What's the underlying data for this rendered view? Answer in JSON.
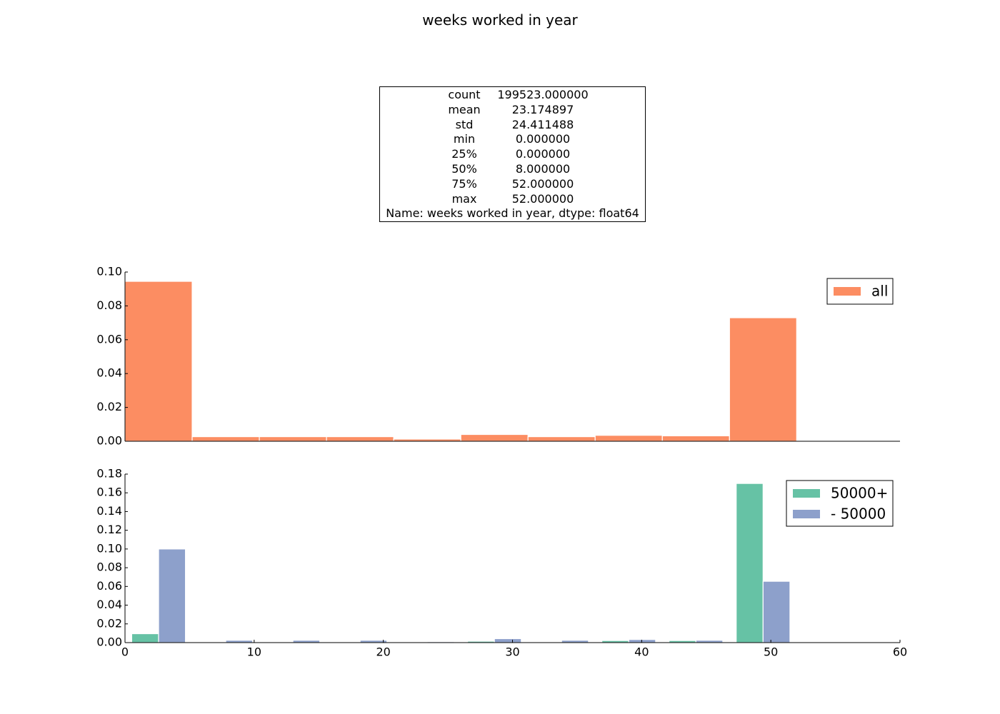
{
  "page_title": "weeks worked in year",
  "stats": {
    "rows": [
      {
        "key": "count",
        "value": "199523.000000"
      },
      {
        "key": "mean",
        "value": "23.174897"
      },
      {
        "key": "std",
        "value": "24.411488"
      },
      {
        "key": "min",
        "value": "0.000000"
      },
      {
        "key": "25%",
        "value": "0.000000"
      },
      {
        "key": "50%",
        "value": "8.000000"
      },
      {
        "key": "75%",
        "value": "52.000000"
      },
      {
        "key": "max",
        "value": "52.000000"
      }
    ],
    "footer": "Name: weeks worked in year, dtype: float64"
  },
  "chart_data": [
    {
      "type": "bar",
      "title": "",
      "xlabel": "",
      "ylabel": "",
      "xlim": [
        0,
        60
      ],
      "ylim": [
        0,
        0.1
      ],
      "yticks": [
        "0.00",
        "0.02",
        "0.04",
        "0.06",
        "0.08",
        "0.10"
      ],
      "xticks": [],
      "grid": false,
      "legend": "top-right",
      "bin_edges": [
        0,
        5.2,
        10.4,
        15.6,
        20.8,
        26.0,
        31.2,
        36.4,
        41.6,
        46.8,
        52.0
      ],
      "series": [
        {
          "name": "all",
          "color": "#fc8d62",
          "values": [
            0.0945,
            0.0027,
            0.0027,
            0.0027,
            0.0013,
            0.004,
            0.0027,
            0.0035,
            0.0032,
            0.073
          ]
        }
      ]
    },
    {
      "type": "bar",
      "title": "",
      "xlabel": "",
      "ylabel": "",
      "xlim": [
        0,
        60
      ],
      "ylim": [
        0,
        0.18
      ],
      "yticks": [
        "0.00",
        "0.02",
        "0.04",
        "0.06",
        "0.08",
        "0.10",
        "0.12",
        "0.14",
        "0.16",
        "0.18"
      ],
      "xticks": [
        "0",
        "10",
        "20",
        "30",
        "40",
        "50",
        "60"
      ],
      "grid": false,
      "legend": "top-right",
      "bin_edges": [
        0,
        5.2,
        10.4,
        15.6,
        20.8,
        26.0,
        31.2,
        36.4,
        41.6,
        46.8,
        52.0
      ],
      "series": [
        {
          "name": "50000+",
          "color": "#66c2a5",
          "values": [
            0.0095,
            0.0,
            0.0,
            0.0,
            0.0,
            0.0015,
            0.0008,
            0.0022,
            0.0022,
            0.17
          ]
        },
        {
          "name": "- 50000",
          "color": "#8da0cb",
          "values": [
            0.1,
            0.0025,
            0.0025,
            0.0025,
            0.001,
            0.0042,
            0.0025,
            0.0033,
            0.0025,
            0.0655
          ]
        }
      ]
    }
  ]
}
